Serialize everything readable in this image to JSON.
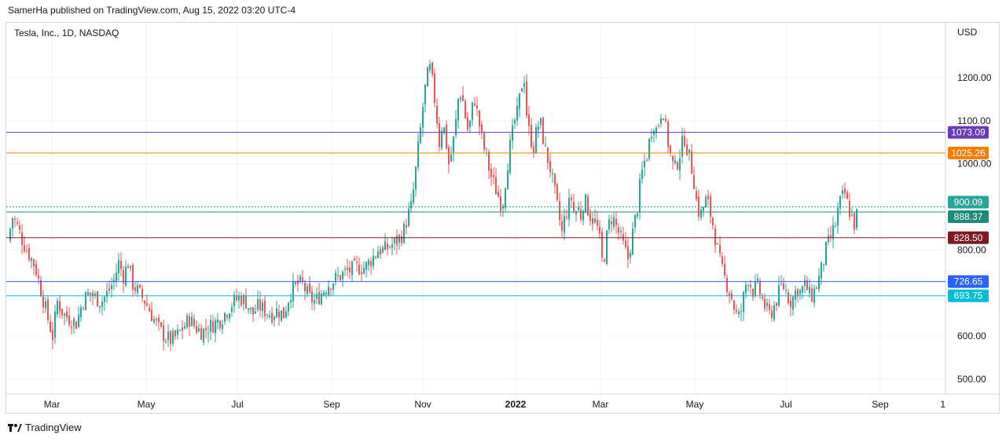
{
  "publisher_line": "SamerHa published on TradingView.com, Aug 15, 2022 03:20 UTC-4",
  "footer_brand": "TradingView",
  "chart_data": {
    "type": "candlestick",
    "title": "Tesla, Inc., 1D, NASDAQ",
    "currency": "USD",
    "ylim": [
      450,
      1300
    ],
    "yticks": [
      500,
      600,
      800,
      1000,
      1100,
      1200
    ],
    "ytick_labels": [
      "500.00",
      "600.00",
      "800.00",
      "1000.00",
      "1100.00",
      "1200.00"
    ],
    "xticks": [
      "Mar",
      "May",
      "Jul",
      "Sep",
      "Nov",
      "2022",
      "Mar",
      "May",
      "Jul",
      "Sep",
      "1"
    ],
    "date_range": [
      "2021-02",
      "2022-08-15"
    ],
    "horizontal_levels": [
      {
        "value": 1073.09,
        "label": "1073.09",
        "color": "#673ab7",
        "style": "solid"
      },
      {
        "value": 1025.26,
        "label": "1025.26",
        "color": "#f57c00",
        "style": "solid"
      },
      {
        "value": 900.09,
        "label": "900.09",
        "color": "#26a69a",
        "style": "dotted"
      },
      {
        "value": 888.37,
        "label": "888.37",
        "color": "#1b8a7a",
        "style": "solid"
      },
      {
        "value": 828.5,
        "label": "828.50",
        "color": "#801922",
        "style": "solid"
      },
      {
        "value": 726.65,
        "label": "726.65",
        "color": "#2962ff",
        "style": "solid"
      },
      {
        "value": 693.75,
        "label": "693.75",
        "color": "#00bcd4",
        "style": "solid"
      }
    ],
    "up_color": "#26a69a",
    "down_color": "#ef5350",
    "price_path": [
      [
        0,
        820
      ],
      [
        4,
        880
      ],
      [
        10,
        860
      ],
      [
        18,
        820
      ],
      [
        26,
        790
      ],
      [
        34,
        760
      ],
      [
        42,
        700
      ],
      [
        50,
        640
      ],
      [
        56,
        600
      ],
      [
        62,
        680
      ],
      [
        70,
        650
      ],
      [
        78,
        640
      ],
      [
        86,
        630
      ],
      [
        94,
        680
      ],
      [
        102,
        700
      ],
      [
        110,
        690
      ],
      [
        118,
        680
      ],
      [
        126,
        700
      ],
      [
        134,
        730
      ],
      [
        140,
        770
      ],
      [
        146,
        740
      ],
      [
        152,
        770
      ],
      [
        158,
        720
      ],
      [
        166,
        700
      ],
      [
        174,
        680
      ],
      [
        182,
        650
      ],
      [
        190,
        620
      ],
      [
        198,
        600
      ],
      [
        206,
        590
      ],
      [
        214,
        600
      ],
      [
        222,
        620
      ],
      [
        230,
        640
      ],
      [
        238,
        620
      ],
      [
        246,
        610
      ],
      [
        254,
        620
      ],
      [
        262,
        630
      ],
      [
        270,
        640
      ],
      [
        278,
        660
      ],
      [
        286,
        680
      ],
      [
        294,
        690
      ],
      [
        302,
        680
      ],
      [
        310,
        650
      ],
      [
        318,
        670
      ],
      [
        326,
        660
      ],
      [
        334,
        650
      ],
      [
        342,
        660
      ],
      [
        350,
        650
      ],
      [
        358,
        700
      ],
      [
        366,
        720
      ],
      [
        374,
        720
      ],
      [
        382,
        690
      ],
      [
        390,
        680
      ],
      [
        398,
        700
      ],
      [
        406,
        720
      ],
      [
        414,
        730
      ],
      [
        422,
        740
      ],
      [
        430,
        750
      ],
      [
        438,
        755
      ],
      [
        446,
        760
      ],
      [
        454,
        760
      ],
      [
        462,
        780
      ],
      [
        470,
        800
      ],
      [
        478,
        800
      ],
      [
        486,
        810
      ],
      [
        494,
        820
      ],
      [
        502,
        840
      ],
      [
        508,
        880
      ],
      [
        512,
        900
      ],
      [
        516,
        950
      ],
      [
        520,
        1020
      ],
      [
        524,
        1080
      ],
      [
        528,
        1150
      ],
      [
        532,
        1200
      ],
      [
        536,
        1220
      ],
      [
        540,
        1180
      ],
      [
        544,
        1120
      ],
      [
        548,
        1050
      ],
      [
        552,
        1100
      ],
      [
        556,
        1060
      ],
      [
        560,
        1000
      ],
      [
        564,
        1030
      ],
      [
        568,
        1080
      ],
      [
        572,
        1150
      ],
      [
        576,
        1170
      ],
      [
        580,
        1120
      ],
      [
        584,
        1080
      ],
      [
        588,
        1100
      ],
      [
        592,
        1160
      ],
      [
        596,
        1120
      ],
      [
        600,
        1080
      ],
      [
        604,
        1040
      ],
      [
        608,
        1020
      ],
      [
        612,
        980
      ],
      [
        616,
        960
      ],
      [
        620,
        940
      ],
      [
        624,
        920
      ],
      [
        628,
        900
      ],
      [
        632,
        960
      ],
      [
        636,
        1020
      ],
      [
        640,
        1060
      ],
      [
        644,
        1100
      ],
      [
        648,
        1120
      ],
      [
        652,
        1180
      ],
      [
        656,
        1200
      ],
      [
        660,
        1090
      ],
      [
        664,
        1060
      ],
      [
        668,
        1040
      ],
      [
        672,
        1080
      ],
      [
        676,
        1100
      ],
      [
        680,
        1060
      ],
      [
        684,
        1020
      ],
      [
        688,
        1000
      ],
      [
        692,
        960
      ],
      [
        696,
        920
      ],
      [
        700,
        880
      ],
      [
        704,
        840
      ],
      [
        708,
        880
      ],
      [
        712,
        900
      ],
      [
        716,
        920
      ],
      [
        720,
        880
      ],
      [
        724,
        900
      ],
      [
        728,
        880
      ],
      [
        732,
        920
      ],
      [
        736,
        900
      ],
      [
        740,
        880
      ],
      [
        744,
        870
      ],
      [
        748,
        860
      ],
      [
        752,
        820
      ],
      [
        756,
        760
      ],
      [
        760,
        820
      ],
      [
        764,
        860
      ],
      [
        768,
        880
      ],
      [
        772,
        860
      ],
      [
        776,
        840
      ],
      [
        780,
        820
      ],
      [
        784,
        800
      ],
      [
        788,
        780
      ],
      [
        792,
        820
      ],
      [
        796,
        860
      ],
      [
        800,
        900
      ],
      [
        804,
        960
      ],
      [
        808,
        1000
      ],
      [
        812,
        1020
      ],
      [
        816,
        1060
      ],
      [
        820,
        1100
      ],
      [
        824,
        1080
      ],
      [
        828,
        1100
      ],
      [
        832,
        1140
      ],
      [
        836,
        1080
      ],
      [
        840,
        1040
      ],
      [
        844,
        1000
      ],
      [
        848,
        990
      ],
      [
        852,
        1010
      ],
      [
        856,
        1040
      ],
      [
        860,
        1060
      ],
      [
        864,
        1030
      ],
      [
        868,
        1000
      ],
      [
        872,
        960
      ],
      [
        876,
        900
      ],
      [
        880,
        880
      ],
      [
        884,
        900
      ],
      [
        888,
        920
      ],
      [
        892,
        890
      ],
      [
        896,
        860
      ],
      [
        900,
        820
      ],
      [
        904,
        780
      ],
      [
        908,
        750
      ],
      [
        912,
        730
      ],
      [
        916,
        710
      ],
      [
        920,
        690
      ],
      [
        924,
        660
      ],
      [
        928,
        640
      ],
      [
        932,
        660
      ],
      [
        936,
        700
      ],
      [
        940,
        740
      ],
      [
        944,
        720
      ],
      [
        948,
        700
      ],
      [
        952,
        720
      ],
      [
        956,
        700
      ],
      [
        960,
        680
      ],
      [
        964,
        660
      ],
      [
        968,
        650
      ],
      [
        972,
        660
      ],
      [
        976,
        680
      ],
      [
        980,
        700
      ],
      [
        984,
        720
      ],
      [
        988,
        710
      ],
      [
        992,
        690
      ],
      [
        996,
        680
      ],
      [
        1000,
        700
      ],
      [
        1004,
        710
      ],
      [
        1008,
        700
      ],
      [
        1012,
        720
      ],
      [
        1016,
        710
      ],
      [
        1020,
        690
      ],
      [
        1024,
        700
      ],
      [
        1028,
        720
      ],
      [
        1032,
        740
      ],
      [
        1036,
        770
      ],
      [
        1040,
        800
      ],
      [
        1044,
        820
      ],
      [
        1048,
        840
      ],
      [
        1052,
        860
      ],
      [
        1056,
        900
      ],
      [
        1060,
        920
      ],
      [
        1064,
        930
      ],
      [
        1068,
        900
      ],
      [
        1072,
        880
      ],
      [
        1076,
        860
      ],
      [
        1080,
        890
      ]
    ]
  }
}
